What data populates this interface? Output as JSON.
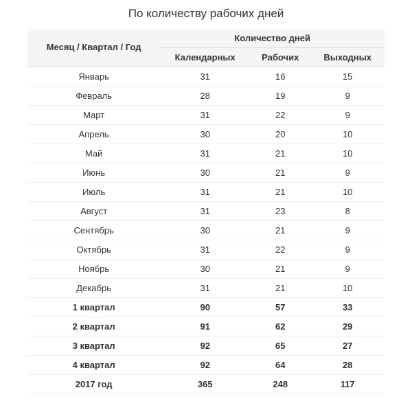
{
  "title": "По количеству рабочих дней",
  "table": {
    "header": {
      "period": "Месяц / Квартал / Год",
      "days_group": "Количество дней",
      "calendar": "Календарных",
      "working": "Рабочих",
      "weekend": "Выходных"
    },
    "rows": [
      {
        "period": "Январь",
        "calendar": 31,
        "working": 16,
        "weekend": 15,
        "bold": false
      },
      {
        "period": "Февраль",
        "calendar": 28,
        "working": 19,
        "weekend": 9,
        "bold": false
      },
      {
        "period": "Март",
        "calendar": 31,
        "working": 22,
        "weekend": 9,
        "bold": false
      },
      {
        "period": "Апрель",
        "calendar": 30,
        "working": 20,
        "weekend": 10,
        "bold": false
      },
      {
        "period": "Май",
        "calendar": 31,
        "working": 21,
        "weekend": 10,
        "bold": false
      },
      {
        "period": "Июнь",
        "calendar": 30,
        "working": 21,
        "weekend": 9,
        "bold": false
      },
      {
        "period": "Июль",
        "calendar": 31,
        "working": 21,
        "weekend": 10,
        "bold": false
      },
      {
        "period": "Август",
        "calendar": 31,
        "working": 23,
        "weekend": 8,
        "bold": false
      },
      {
        "period": "Сентябрь",
        "calendar": 30,
        "working": 21,
        "weekend": 9,
        "bold": false
      },
      {
        "period": "Октябрь",
        "calendar": 31,
        "working": 22,
        "weekend": 9,
        "bold": false
      },
      {
        "period": "Ноябрь",
        "calendar": 30,
        "working": 21,
        "weekend": 9,
        "bold": false
      },
      {
        "period": "Декабрь",
        "calendar": 31,
        "working": 21,
        "weekend": 10,
        "bold": false
      },
      {
        "period": "1 квартал",
        "calendar": 90,
        "working": 57,
        "weekend": 33,
        "bold": true
      },
      {
        "period": "2 квартал",
        "calendar": 91,
        "working": 62,
        "weekend": 29,
        "bold": true
      },
      {
        "period": "3 квартал",
        "calendar": 92,
        "working": 65,
        "weekend": 27,
        "bold": true
      },
      {
        "period": "4 квартал",
        "calendar": 92,
        "working": 64,
        "weekend": 28,
        "bold": true
      },
      {
        "period": "2017 год",
        "calendar": 365,
        "working": 248,
        "weekend": 117,
        "bold": true
      }
    ],
    "column_widths": [
      "28%",
      "24%",
      "24%",
      "24%"
    ],
    "colors": {
      "header_bg": "#f5f5f5",
      "border": "#ddd",
      "row_border": "#eee",
      "text": "#333",
      "background": "#ffffff"
    },
    "font_size_body": 13,
    "font_size_title": 17
  }
}
